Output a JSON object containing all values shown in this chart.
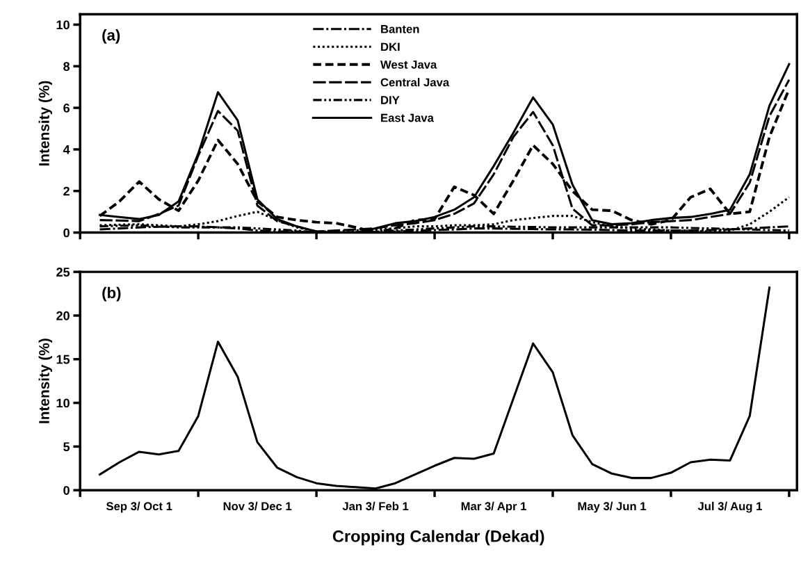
{
  "chart_data": [
    {
      "type": "line",
      "ylabel": "Intensity (%)",
      "annotations": [
        "(a)"
      ],
      "legend": "top",
      "grid": false,
      "tick_labels": "y",
      "categories": [
        null,
        null,
        null,
        null,
        null,
        null,
        null,
        null,
        null,
        null,
        null,
        null,
        null,
        null,
        null,
        null,
        null,
        null,
        null,
        null,
        null,
        null,
        null,
        null,
        null,
        null,
        null,
        null,
        null,
        null,
        null,
        null,
        null,
        null,
        null,
        null
      ],
      "ylim": [
        0,
        10.5
      ],
      "yticks": [
        0,
        2,
        4,
        6,
        8,
        10
      ],
      "series": [
        {
          "name": "Banten",
          "color": "#000000",
          "line_style": "dashdot",
          "values": [
            0.15,
            0.2,
            0.25,
            0.28,
            0.3,
            0.3,
            0.25,
            0.2,
            0.1,
            0.05,
            0.05,
            0,
            0,
            0,
            0.03,
            0.05,
            0.08,
            0.12,
            0.15,
            0.2,
            0.2,
            0.18,
            0.17,
            0.15,
            0.15,
            0.14,
            0.12,
            0.1,
            0.1,
            0.1,
            0.1,
            0.12,
            0.15,
            0.2,
            0.25,
            0.3
          ]
        },
        {
          "name": "DKI",
          "color": "#000000",
          "line_style": "dotted",
          "values": [
            0.35,
            0.38,
            0.4,
            0.35,
            0.3,
            0.4,
            0.55,
            0.8,
            1.0,
            0.6,
            0.25,
            0.05,
            0.05,
            0.1,
            0.15,
            0.2,
            0.3,
            0.3,
            0.35,
            0.35,
            0.4,
            0.6,
            0.7,
            0.8,
            0.8,
            0.5,
            0.3,
            0.2,
            0.15,
            0.1,
            0.08,
            0.05,
            0.1,
            0.4,
            1.0,
            1.7
          ]
        },
        {
          "name": "West Java",
          "color": "#000000",
          "line_style": "dashed",
          "values": [
            0.8,
            1.5,
            2.45,
            1.6,
            1.05,
            2.5,
            4.45,
            3.3,
            1.5,
            0.75,
            0.6,
            0.5,
            0.45,
            0.25,
            0,
            0.2,
            0.6,
            0.65,
            2.2,
            1.8,
            0.9,
            2.5,
            4.2,
            3.3,
            2.0,
            1.1,
            1.05,
            0.6,
            0.4,
            0.6,
            1.7,
            2.1,
            0.9,
            1.0,
            4.6,
            6.9
          ]
        },
        {
          "name": "Central Java",
          "color": "#000000",
          "line_style": "dashed_long",
          "values": [
            0.6,
            0.58,
            0.55,
            0.9,
            1.3,
            3.7,
            5.85,
            4.9,
            1.3,
            0.55,
            0.3,
            0.05,
            0.1,
            0.15,
            0.2,
            0.35,
            0.45,
            0.6,
            0.9,
            1.4,
            2.8,
            4.6,
            5.8,
            4.2,
            1.15,
            0.35,
            0.35,
            0.4,
            0.5,
            0.55,
            0.6,
            0.75,
            0.9,
            2.4,
            5.6,
            7.35
          ]
        },
        {
          "name": "DIY",
          "color": "#000000",
          "line_style": "dashdotdot",
          "values": [
            0.3,
            0.33,
            0.35,
            0.3,
            0.25,
            0.25,
            0.25,
            0.25,
            0.2,
            0.15,
            0.1,
            0,
            0,
            0.03,
            0.07,
            0.1,
            0.15,
            0.2,
            0.25,
            0.3,
            0.3,
            0.28,
            0.27,
            0.25,
            0.25,
            0.25,
            0.25,
            0.25,
            0.25,
            0.25,
            0.22,
            0.2,
            0.17,
            0.15,
            0.12,
            0.1
          ]
        },
        {
          "name": "East Java",
          "color": "#000000",
          "line_style": "solid",
          "values": [
            0.85,
            0.75,
            0.65,
            0.85,
            1.5,
            3.8,
            6.75,
            5.4,
            1.6,
            0.65,
            0.3,
            0.05,
            0,
            0,
            0.2,
            0.45,
            0.55,
            0.75,
            1.1,
            1.7,
            3.2,
            4.8,
            6.5,
            5.2,
            2.3,
            0.6,
            0.4,
            0.45,
            0.6,
            0.7,
            0.75,
            0.9,
            1.1,
            2.8,
            6.1,
            8.1
          ]
        }
      ]
    },
    {
      "type": "line",
      "xlabel": "Cropping Calendar (Dekad)",
      "ylabel": "Intensity (%)",
      "annotations": [
        "(b)"
      ],
      "grid": false,
      "categories": [
        null,
        null,
        "Sep 3/ Oct 1",
        null,
        null,
        null,
        null,
        null,
        "Nov 3/ Dec 1",
        null,
        null,
        null,
        null,
        null,
        "Jan 3/ Feb 1",
        null,
        null,
        null,
        null,
        null,
        "Mar 3/ Apr 1",
        null,
        null,
        null,
        null,
        null,
        "May 3/ Jun 1",
        null,
        null,
        null,
        null,
        null,
        "Jul 3/ Aug 1",
        null,
        null,
        null
      ],
      "ylim": [
        0,
        25
      ],
      "yticks": [
        0,
        5,
        10,
        15,
        20,
        25
      ],
      "series": [
        {
          "color": "#000000",
          "line_style": "solid",
          "values": [
            1.8,
            3.2,
            4.4,
            4.1,
            4.5,
            8.5,
            17,
            13,
            5.5,
            2.6,
            1.5,
            0.8,
            0.5,
            0.35,
            0.2,
            0.8,
            1.8,
            2.8,
            3.7,
            3.6,
            4.2,
            10.5,
            16.8,
            13.5,
            6.3,
            3.0,
            1.9,
            1.4,
            1.4,
            2.0,
            3.2,
            3.5,
            3.4,
            8.5,
            23.2,
            null
          ]
        }
      ]
    }
  ]
}
